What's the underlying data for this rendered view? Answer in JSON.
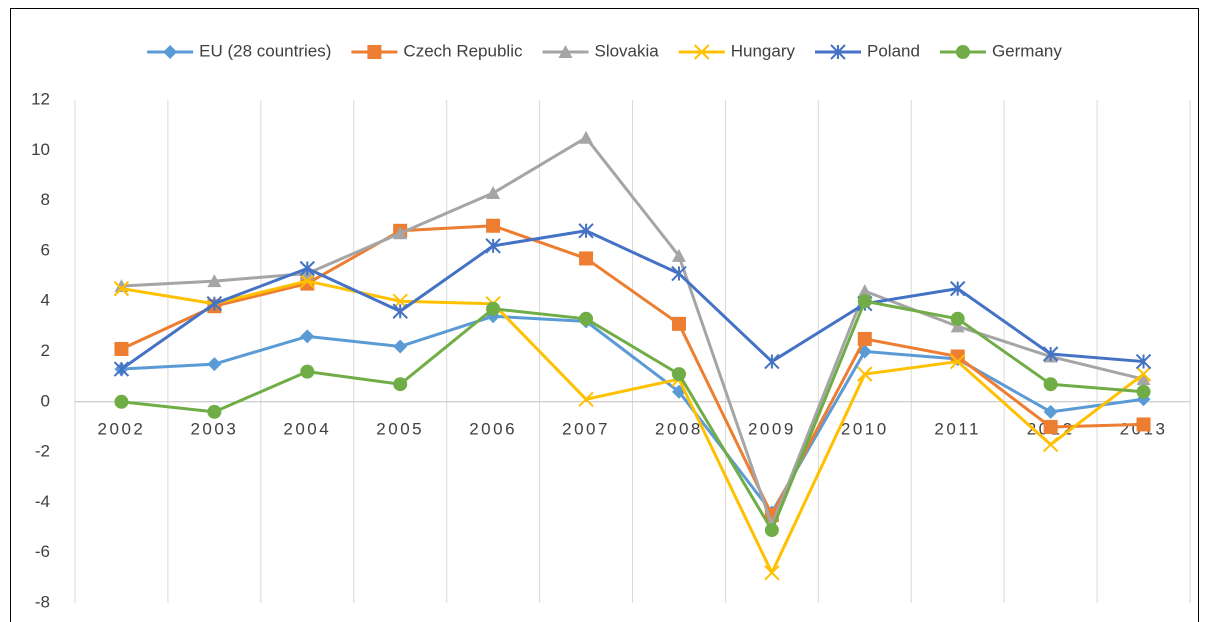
{
  "chart_data": {
    "type": "line",
    "categories": [
      "2002",
      "2003",
      "2004",
      "2005",
      "2006",
      "2007",
      "2008",
      "2009",
      "2010",
      "2011",
      "2012",
      "2013"
    ],
    "series": [
      {
        "name": "EU (28 countries)",
        "color": "#5b9bd5",
        "marker": "diamond",
        "values": [
          1.3,
          1.5,
          2.6,
          2.2,
          3.4,
          3.2,
          0.4,
          -4.4,
          2.0,
          1.7,
          -0.4,
          0.1
        ]
      },
      {
        "name": "Czech Republic",
        "color": "#ed7d31",
        "marker": "square",
        "values": [
          2.1,
          3.8,
          4.7,
          6.8,
          7.0,
          5.7,
          3.1,
          -4.5,
          2.5,
          1.8,
          -1.0,
          -0.9
        ]
      },
      {
        "name": "Slovakia",
        "color": "#a5a5a5",
        "marker": "triangle",
        "values": [
          4.6,
          4.8,
          5.1,
          6.7,
          8.3,
          10.5,
          5.8,
          -4.9,
          4.4,
          3.0,
          1.8,
          0.9
        ]
      },
      {
        "name": "Hungary",
        "color": "#ffc000",
        "marker": "x",
        "values": [
          4.5,
          3.9,
          4.8,
          4.0,
          3.9,
          0.1,
          0.9,
          -6.8,
          1.1,
          1.6,
          -1.7,
          1.1
        ]
      },
      {
        "name": "Poland",
        "color": "#4472c4",
        "marker": "asterisk",
        "values": [
          1.3,
          3.9,
          5.3,
          3.6,
          6.2,
          6.8,
          5.1,
          1.6,
          3.9,
          4.5,
          1.9,
          1.6
        ]
      },
      {
        "name": "Germany",
        "color": "#70ad47",
        "marker": "circle",
        "values": [
          0.0,
          -0.4,
          1.2,
          0.7,
          3.7,
          3.3,
          1.1,
          -5.1,
          4.0,
          3.3,
          0.7,
          0.4
        ]
      }
    ],
    "ylim": [
      -8,
      12
    ],
    "yticks": [
      -8,
      -6,
      -4,
      -2,
      0,
      2,
      4,
      6,
      8,
      10,
      12
    ],
    "grid": "vertical",
    "legend": "top"
  }
}
